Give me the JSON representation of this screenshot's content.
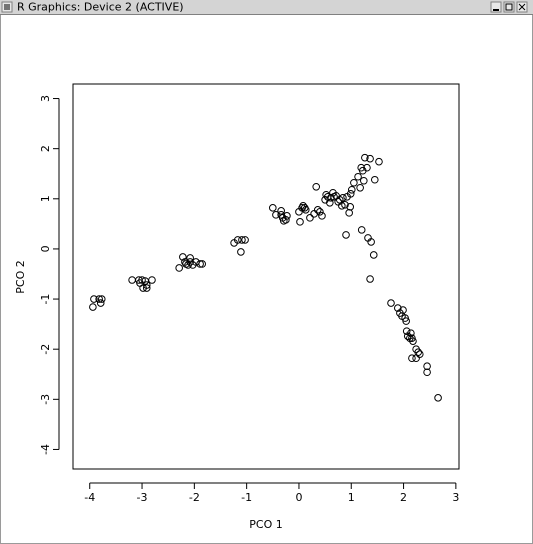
{
  "window": {
    "title": "R Graphics: Device 2 (ACTIVE)"
  },
  "chart_data": {
    "type": "scatter",
    "xlabel": "PCO 1",
    "ylabel": "PCO 2",
    "color": "#000000",
    "xlim": [
      -4.32,
      3.06
    ],
    "ylim": [
      -4.39,
      3.29
    ],
    "xticks": [
      -4,
      -3,
      -2,
      -1,
      0,
      1,
      2,
      3
    ],
    "yticks": [
      -4,
      -3,
      -2,
      -1,
      0,
      1,
      2,
      3
    ],
    "x": [
      -3.92,
      -3.82,
      -3.94,
      -3.79,
      -3.77,
      -3.19,
      -3.06,
      -3.0,
      -2.94,
      -2.91,
      -2.98,
      -2.91,
      -2.81,
      -3.04,
      -2.29,
      -2.22,
      -2.18,
      -2.12,
      -2.08,
      -2.03,
      -2.08,
      -1.97,
      -1.89,
      -1.85,
      -2.16,
      -1.24,
      -1.17,
      -1.09,
      -1.03,
      -1.11,
      -0.5,
      -0.44,
      -0.34,
      -0.34,
      -0.31,
      -0.29,
      -0.25,
      -0.23,
      0.0,
      0.02,
      0.08,
      0.11,
      0.13,
      0.06,
      0.21,
      0.29,
      0.33,
      0.36,
      0.4,
      0.44,
      0.5,
      0.52,
      0.55,
      0.59,
      0.61,
      0.65,
      0.67,
      0.71,
      0.75,
      0.78,
      0.82,
      0.84,
      0.88,
      0.9,
      0.92,
      0.96,
      0.98,
      0.99,
      1.01,
      1.05,
      1.13,
      1.19,
      1.22,
      1.24,
      1.17,
      1.26,
      1.3,
      1.36,
      1.53,
      1.45,
      1.2,
      1.32,
      1.38,
      1.43,
      1.36,
      1.76,
      1.89,
      1.93,
      1.97,
      1.99,
      2.03,
      2.05,
      2.06,
      2.08,
      2.12,
      2.14,
      2.16,
      2.18,
      2.24,
      2.28,
      2.31,
      2.16,
      2.24,
      2.45,
      2.45,
      2.66
    ],
    "y": [
      -1.0,
      -1.0,
      -1.16,
      -1.08,
      -1.0,
      -0.62,
      -0.62,
      -0.62,
      -0.64,
      -0.72,
      -0.78,
      -0.78,
      -0.62,
      -0.68,
      -0.38,
      -0.16,
      -0.26,
      -0.32,
      -0.26,
      -0.32,
      -0.18,
      -0.26,
      -0.3,
      -0.3,
      -0.3,
      0.12,
      0.18,
      0.18,
      0.18,
      -0.06,
      0.82,
      0.68,
      0.68,
      0.76,
      0.62,
      0.56,
      0.58,
      0.66,
      0.74,
      0.54,
      0.86,
      0.82,
      0.78,
      0.82,
      0.62,
      0.7,
      1.24,
      0.78,
      0.74,
      0.66,
      0.98,
      1.08,
      1.04,
      0.92,
      1.02,
      1.12,
      1.04,
      1.06,
      0.94,
      0.98,
      0.86,
      1.02,
      0.88,
      0.28,
      1.04,
      0.72,
      0.84,
      1.1,
      1.18,
      1.32,
      1.44,
      1.62,
      1.56,
      1.36,
      1.22,
      1.82,
      1.62,
      1.8,
      1.74,
      1.38,
      0.38,
      0.22,
      0.14,
      -0.12,
      -0.6,
      -1.08,
      -1.18,
      -1.28,
      -1.34,
      -1.22,
      -1.38,
      -1.44,
      -1.64,
      -1.74,
      -1.78,
      -1.68,
      -1.78,
      -1.84,
      -2.0,
      -2.06,
      -2.1,
      -2.18,
      -2.18,
      -2.34,
      -2.46,
      -2.97
    ]
  }
}
